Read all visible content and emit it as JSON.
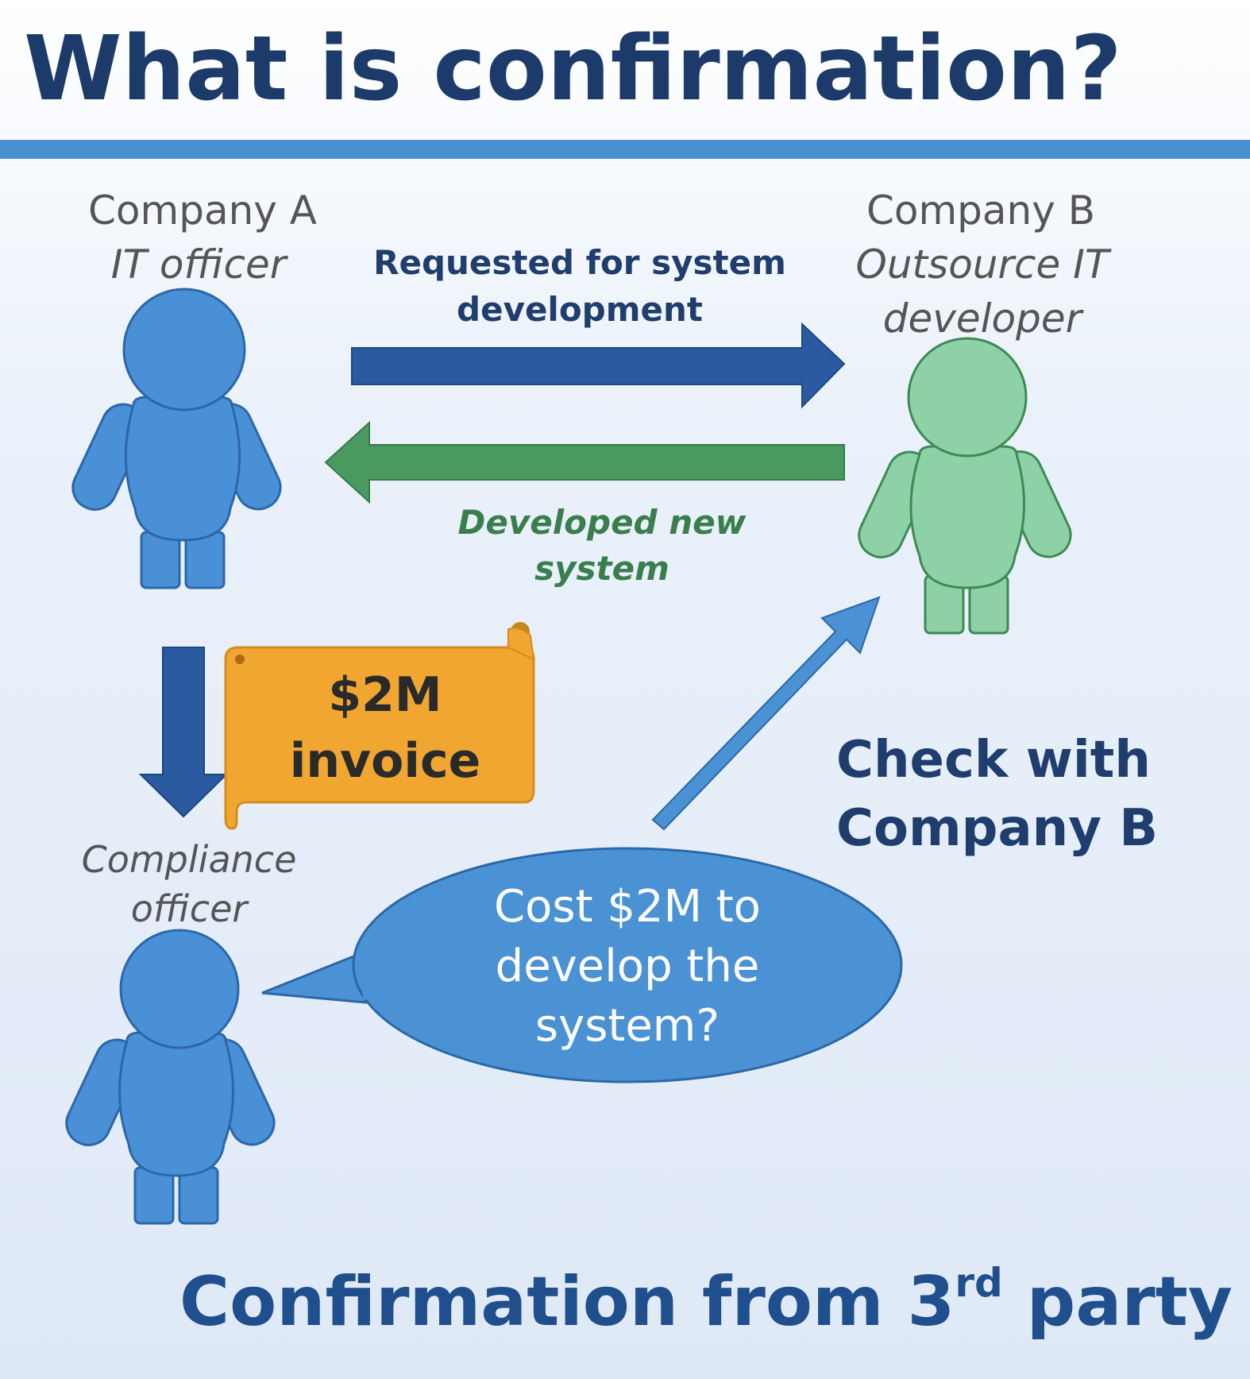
{
  "title": "What is confirmation?",
  "company_a": {
    "line1": "Company A",
    "line2": "IT officer"
  },
  "company_b": {
    "line1": "Company B",
    "line2": "Outsource IT",
    "line3": "developer"
  },
  "request_arrow": {
    "line1": "Requested for system",
    "line2": "development"
  },
  "return_arrow": {
    "line1": "Developed new",
    "line2": "system"
  },
  "invoice": {
    "line1": "$2M",
    "line2": "invoice"
  },
  "compliance": {
    "line1": "Compliance",
    "line2": "officer"
  },
  "speech": {
    "line1": "Cost $2M to",
    "line2": "develop the",
    "line3": "system?"
  },
  "check": {
    "line1": "Check with",
    "line2": "Company B"
  },
  "footer": {
    "text": "Confirmation from 3",
    "sup": "rd",
    "tail": " party"
  },
  "colors": {
    "title": "#1c3b6b",
    "rule": "#4a90d0",
    "person_blue": "#4a90d6",
    "person_blue_stroke": "#2c67a8",
    "person_green": "#8fd1a7",
    "person_green_stroke": "#3d8a55",
    "arrow_dark_blue": "#2a5aa0",
    "arrow_green": "#4a9a60",
    "arrow_light_blue": "#4a92d4",
    "invoice": "#f0a630",
    "label_grey": "#555555",
    "label_dark_blue": "#1f3e6e",
    "label_green": "#3a7e4e"
  }
}
